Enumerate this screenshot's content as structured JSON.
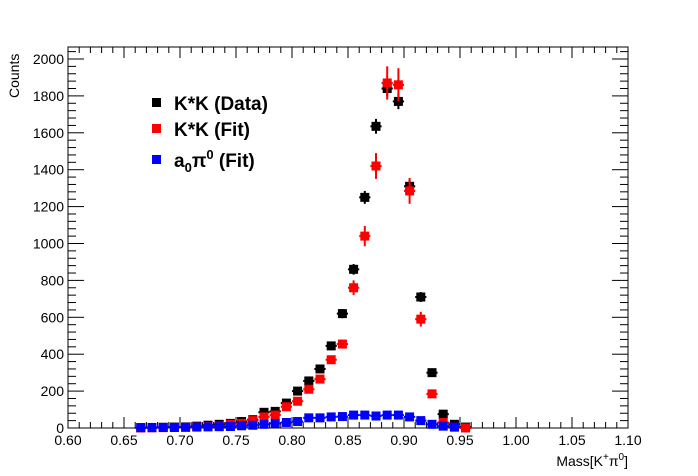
{
  "chart_data": {
    "type": "scatter",
    "title": "",
    "xlabel": "Mass[K⁺π⁰]",
    "ylabel": "Counts",
    "xlim": [
      0.6,
      1.1
    ],
    "ylim": [
      0,
      2065
    ],
    "grid": false,
    "legend_position": "top-left",
    "x_ticks": [
      "0.60",
      "0.65",
      "0.70",
      "0.75",
      "0.80",
      "0.85",
      "0.90",
      "0.95",
      "1.00",
      "1.05",
      "1.10"
    ],
    "y_ticks": [
      "0",
      "200",
      "400",
      "600",
      "800",
      "1000",
      "1200",
      "1400",
      "1600",
      "1800",
      "2000"
    ],
    "bin_width": 0.01,
    "series": [
      {
        "name": "K*K (Data)",
        "color": "#000000",
        "x": [
          0.665,
          0.675,
          0.685,
          0.695,
          0.705,
          0.715,
          0.725,
          0.735,
          0.745,
          0.755,
          0.765,
          0.775,
          0.785,
          0.795,
          0.805,
          0.815,
          0.825,
          0.835,
          0.845,
          0.855,
          0.865,
          0.875,
          0.885,
          0.895,
          0.905,
          0.915,
          0.925,
          0.935,
          0.945,
          0.955
        ],
        "values": [
          2,
          3,
          4,
          5,
          6,
          10,
          15,
          20,
          25,
          35,
          45,
          85,
          90,
          135,
          200,
          255,
          320,
          445,
          620,
          860,
          1250,
          1635,
          1840,
          1770,
          1310,
          710,
          300,
          75,
          20,
          5
        ],
        "errors": [
          1,
          2,
          2,
          2,
          2,
          3,
          4,
          4,
          5,
          6,
          7,
          9,
          9,
          12,
          14,
          16,
          18,
          21,
          25,
          29,
          35,
          40,
          43,
          42,
          36,
          27,
          17,
          9,
          4,
          2
        ]
      },
      {
        "name": "K*K (Fit)",
        "color": "#ff0000",
        "x": [
          0.665,
          0.675,
          0.685,
          0.695,
          0.705,
          0.715,
          0.725,
          0.735,
          0.745,
          0.755,
          0.765,
          0.775,
          0.785,
          0.795,
          0.805,
          0.815,
          0.825,
          0.835,
          0.845,
          0.855,
          0.865,
          0.875,
          0.885,
          0.895,
          0.905,
          0.915,
          0.925,
          0.935,
          0.945,
          0.955
        ],
        "values": [
          0,
          1,
          2,
          3,
          4,
          6,
          8,
          10,
          20,
          25,
          40,
          60,
          70,
          115,
          145,
          210,
          265,
          370,
          455,
          760,
          1040,
          1420,
          1870,
          1860,
          1285,
          590,
          185,
          30,
          5,
          0
        ],
        "errors": [
          0,
          1,
          1,
          2,
          2,
          2,
          3,
          3,
          4,
          5,
          6,
          8,
          9,
          11,
          12,
          15,
          17,
          20,
          22,
          40,
          55,
          70,
          90,
          90,
          70,
          40,
          15,
          5,
          2,
          0
        ]
      },
      {
        "name": "a₀π⁰ (Fit)",
        "color": "#0000ff",
        "x": [
          0.665,
          0.675,
          0.685,
          0.695,
          0.705,
          0.715,
          0.725,
          0.735,
          0.745,
          0.755,
          0.765,
          0.775,
          0.785,
          0.795,
          0.805,
          0.815,
          0.825,
          0.835,
          0.845,
          0.855,
          0.865,
          0.875,
          0.885,
          0.895,
          0.905,
          0.915,
          0.925,
          0.935,
          0.945
        ],
        "values": [
          2,
          2,
          3,
          3,
          4,
          5,
          6,
          7,
          8,
          12,
          15,
          20,
          25,
          30,
          35,
          55,
          55,
          60,
          62,
          70,
          70,
          65,
          70,
          70,
          60,
          40,
          20,
          10,
          5
        ],
        "errors": [
          1,
          1,
          1,
          1,
          1,
          1,
          2,
          2,
          2,
          2,
          3,
          3,
          4,
          4,
          4,
          5,
          5,
          5,
          5,
          6,
          6,
          6,
          6,
          6,
          5,
          4,
          3,
          2,
          1
        ]
      }
    ],
    "legend": [
      {
        "label": "K*K (Data)",
        "color": "#000000"
      },
      {
        "label": "K*K (Fit)",
        "color": "#ff0000"
      },
      {
        "label_main": "a",
        "label_sub": "0",
        "label_rest": "π",
        "label_sup": "0",
        "label_tail": " (Fit)",
        "color": "#0000ff"
      }
    ]
  }
}
